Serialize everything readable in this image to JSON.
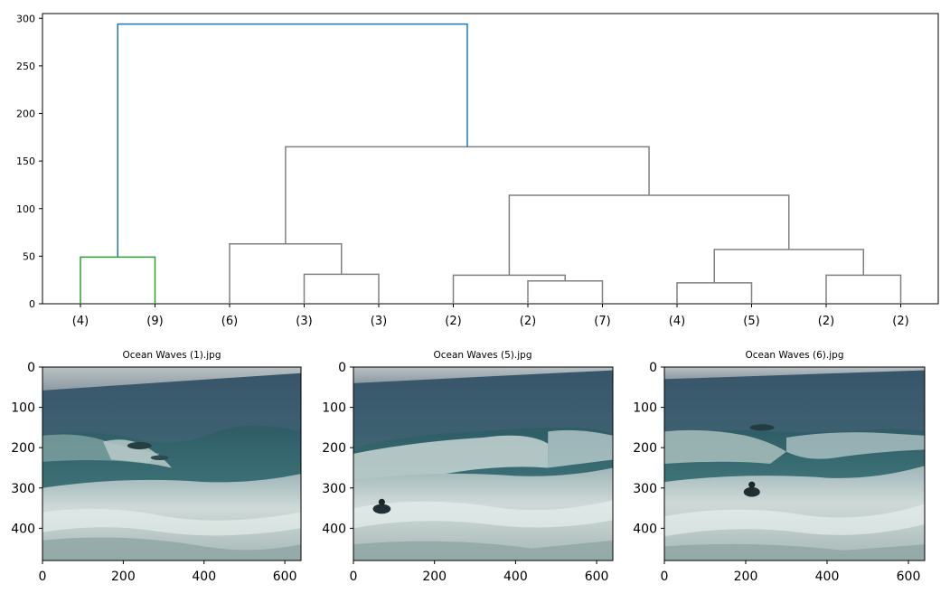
{
  "chart_data": [
    {
      "type": "dendrogram",
      "title": "",
      "ylim": [
        0,
        305
      ],
      "yticks": [
        0,
        50,
        100,
        150,
        200,
        250,
        300
      ],
      "leaf_labels": [
        "(4)",
        "(9)",
        "(6)",
        "(3)",
        "(3)",
        "(2)",
        "(2)",
        "(7)",
        "(4)",
        "(5)",
        "(2)",
        "(2)"
      ],
      "merges": [
        {
          "left": "leaf:0",
          "right": "leaf:1",
          "height": 49,
          "color": "#2ca02c"
        },
        {
          "left": "leaf:3",
          "right": "leaf:4",
          "height": 31,
          "color": "#808080"
        },
        {
          "left": "leaf:2",
          "right": "node:1",
          "height": 63,
          "color": "#808080"
        },
        {
          "left": "leaf:6",
          "right": "leaf:7",
          "height": 24,
          "color": "#808080"
        },
        {
          "left": "leaf:5",
          "right": "node:3",
          "height": 30,
          "color": "#808080"
        },
        {
          "left": "leaf:8",
          "right": "leaf:9",
          "height": 22,
          "color": "#808080"
        },
        {
          "left": "leaf:10",
          "right": "leaf:11",
          "height": 30,
          "color": "#808080"
        },
        {
          "left": "node:5",
          "right": "node:6",
          "height": 57,
          "color": "#808080"
        },
        {
          "left": "node:4",
          "right": "node:7",
          "height": 114,
          "color": "#808080"
        },
        {
          "left": "node:2",
          "right": "node:8",
          "height": 165,
          "color": "#808080"
        },
        {
          "left": "node:0",
          "right": "node:9",
          "height": 294,
          "color": "#1f77b4"
        }
      ]
    },
    {
      "type": "image",
      "title": "Ocean Waves (1).jpg",
      "xlim": [
        0,
        640
      ],
      "ylim": [
        480,
        0
      ],
      "xticks": [
        0,
        200,
        400,
        600
      ],
      "yticks": [
        0,
        100,
        200,
        300,
        400
      ]
    },
    {
      "type": "image",
      "title": "Ocean Waves (5).jpg",
      "xlim": [
        0,
        640
      ],
      "ylim": [
        480,
        0
      ],
      "xticks": [
        0,
        200,
        400,
        600
      ],
      "yticks": [
        0,
        100,
        200,
        300,
        400
      ]
    },
    {
      "type": "image",
      "title": "Ocean Waves (6).jpg",
      "xlim": [
        0,
        640
      ],
      "ylim": [
        480,
        0
      ],
      "xticks": [
        0,
        200,
        400,
        600
      ],
      "yticks": [
        0,
        100,
        200,
        300,
        400
      ]
    }
  ]
}
